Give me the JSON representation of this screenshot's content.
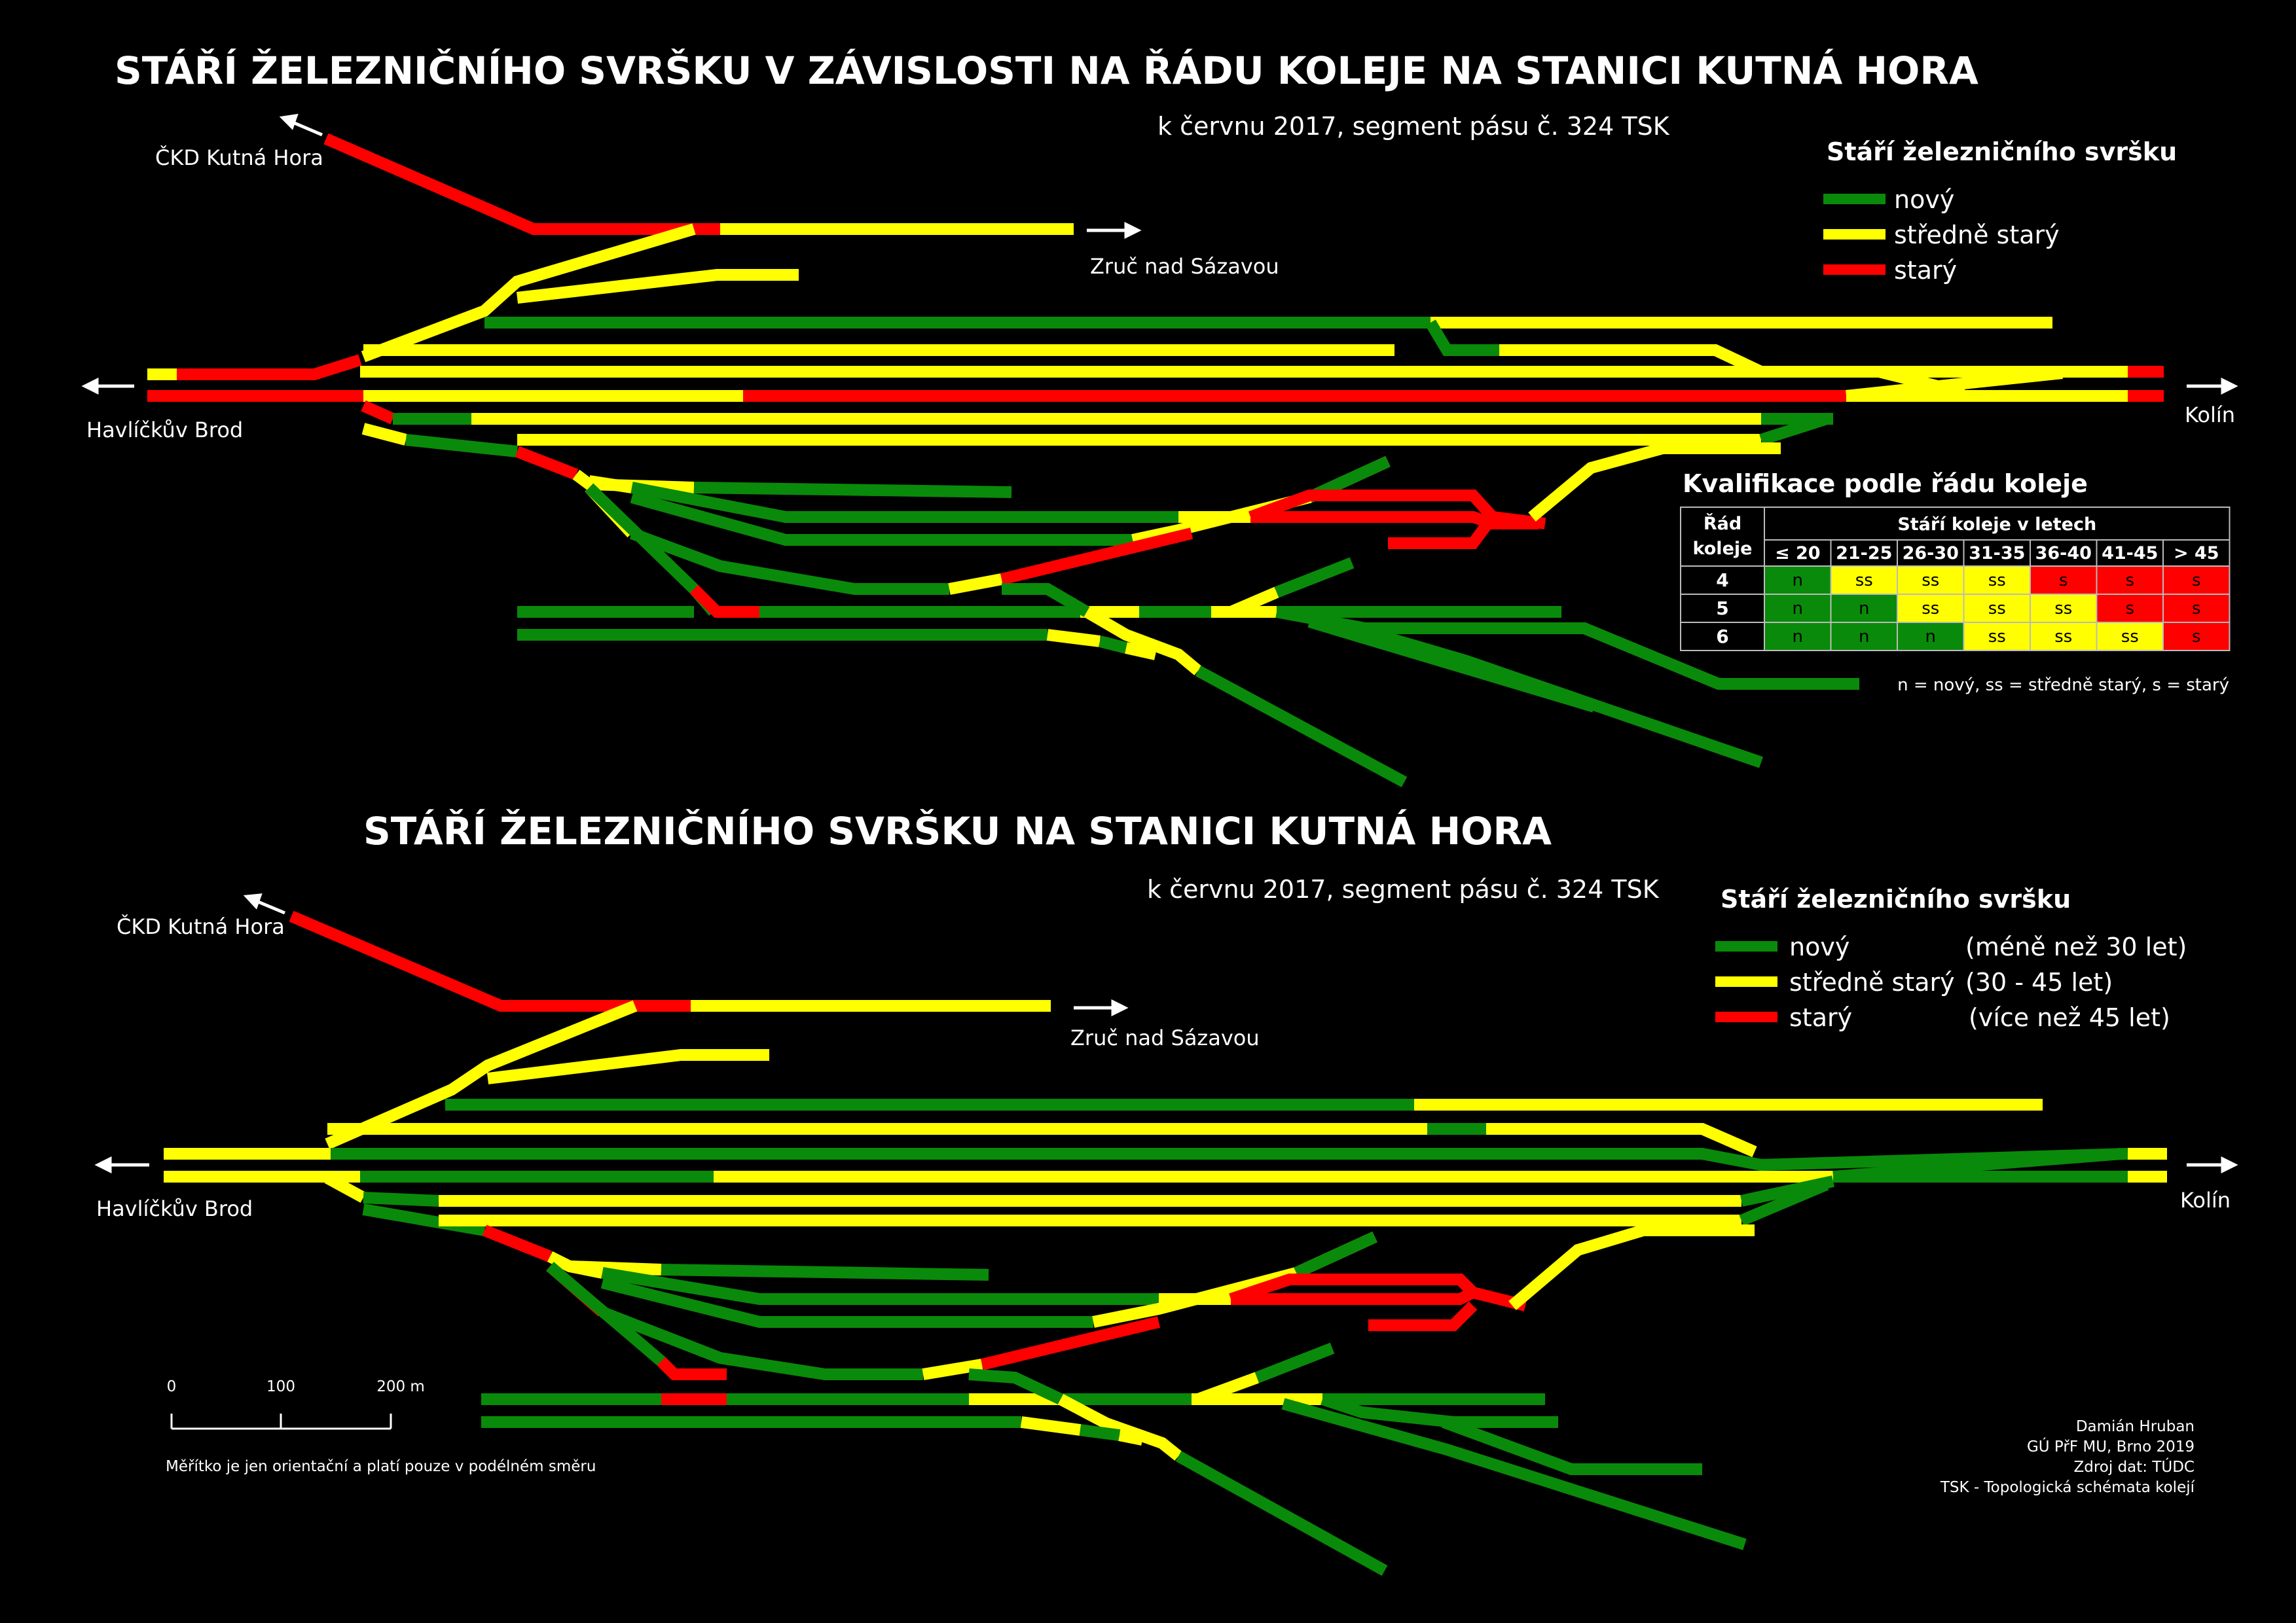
{
  "top": {
    "title": "STÁŘÍ ŽELEZNIČNÍHO SVRŠKU V ZÁVISLOSTI NA ŘÁDU KOLEJE NA STANICI KUTNÁ HORA",
    "subtitle": "k červnu 2017, segment pásu č. 324 TSK",
    "places": {
      "ckd": "ČKD Kutná Hora",
      "zruc": "Zruč nad Sázavou",
      "havlickuv": "Havlíčkův Brod",
      "kolin": "Kolín"
    },
    "legend": {
      "heading": "Stáří železničního svršku",
      "items": [
        {
          "label": "nový",
          "color": "#0a8a0a"
        },
        {
          "label": "středně starý",
          "color": "#ffff00"
        },
        {
          "label": "starý",
          "color": "#ff0000"
        }
      ]
    },
    "qualification": {
      "heading": "Kvalifikace podle řádu koleje",
      "row_header_line1": "Řád",
      "row_header_line2": "koleje",
      "age_header": "Stáří koleje v letech",
      "columns": [
        "≤ 20",
        "21-25",
        "26-30",
        "31-35",
        "36-40",
        "41-45",
        "> 45"
      ],
      "rows": [
        {
          "order": "4",
          "cells": [
            "n",
            "ss",
            "ss",
            "ss",
            "s",
            "s",
            "s"
          ]
        },
        {
          "order": "5",
          "cells": [
            "n",
            "n",
            "ss",
            "ss",
            "ss",
            "s",
            "s"
          ]
        },
        {
          "order": "6",
          "cells": [
            "n",
            "n",
            "n",
            "ss",
            "ss",
            "ss",
            "s"
          ]
        }
      ],
      "note": "n = nový, ss = středně starý, s = starý"
    }
  },
  "bottom": {
    "title": "STÁŘÍ ŽELEZNIČNÍHO SVRŠKU NA STANICI KUTNÁ HORA",
    "subtitle": "k červnu 2017, segment pásu č. 324 TSK",
    "places": {
      "ckd": "ČKD Kutná Hora",
      "zruc": "Zruč nad Sázavou",
      "havlickuv": "Havlíčkův Brod",
      "kolin": "Kolín"
    },
    "legend": {
      "heading": "Stáří železničního svršku",
      "items": [
        {
          "label": "nový",
          "range": "(méně než 30 let)",
          "color": "#0a8a0a"
        },
        {
          "label": "středně starý",
          "range": "(30 - 45 let)",
          "color": "#ffff00"
        },
        {
          "label": "starý",
          "range": "(více než 45 let)",
          "color": "#ff0000"
        }
      ]
    },
    "scale": {
      "ticks": [
        "0",
        "100",
        "200 m"
      ],
      "note": "Měřítko je jen orientační a platí pouze v podélném směru"
    },
    "credits": [
      "Damián Hruban",
      "GÚ PřF MU, Brno 2019",
      "Zdroj dat: TÚDC",
      "TSK - Topologická schémata kolejí"
    ]
  },
  "colors": {
    "n": "#0a8a0a",
    "ss": "#ffff00",
    "s": "#ff0000",
    "background": "#000000",
    "text": "#ffffff"
  }
}
